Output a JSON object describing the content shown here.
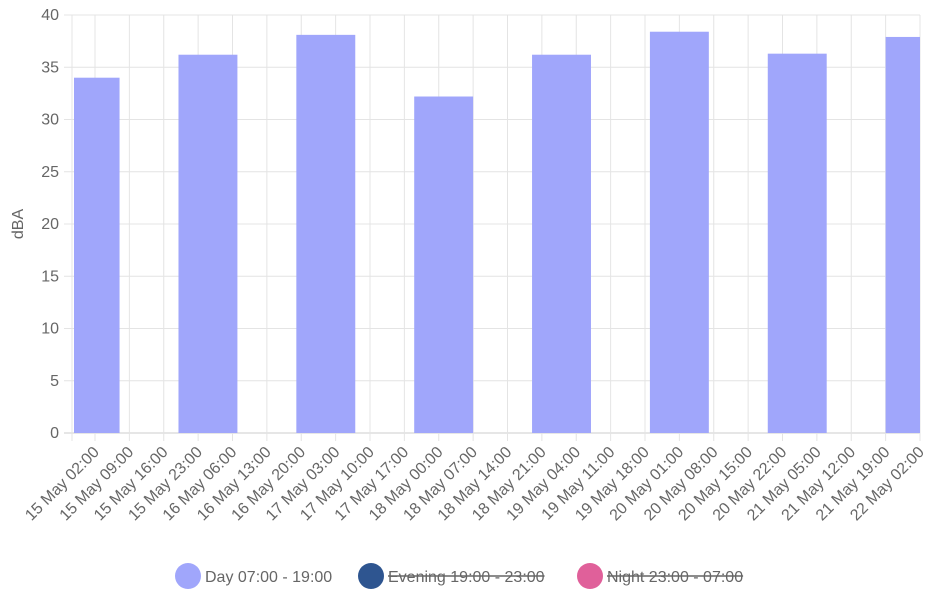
{
  "chart_data": {
    "type": "bar",
    "ylabel": "dBA",
    "ylim": [
      0,
      40
    ],
    "yticks": [
      0,
      5,
      10,
      15,
      20,
      25,
      30,
      35,
      40
    ],
    "x_ticks": [
      "15 May 02:00",
      "15 May 09:00",
      "15 May 16:00",
      "15 May 23:00",
      "16 May 06:00",
      "16 May 13:00",
      "16 May 20:00",
      "17 May 03:00",
      "17 May 10:00",
      "17 May 17:00",
      "18 May 00:00",
      "18 May 07:00",
      "18 May 14:00",
      "18 May 21:00",
      "19 May 04:00",
      "19 May 11:00",
      "19 May 18:00",
      "20 May 01:00",
      "20 May 08:00",
      "20 May 15:00",
      "20 May 22:00",
      "21 May 05:00",
      "21 May 12:00",
      "21 May 19:00",
      "22 May 02:00"
    ],
    "grid": true,
    "legend_position": "bottom",
    "series": [
      {
        "name": "Day 07:00 - 19:00",
        "color": "#a0a6fb",
        "hidden": false,
        "bars": [
          {
            "x_start": "15 May 02:00",
            "x_end": "15 May 07:00",
            "value": 34.0
          },
          {
            "x_start": "15 May 19:00",
            "x_end": "16 May 07:00",
            "value": 36.2
          },
          {
            "x_start": "16 May 19:00",
            "x_end": "17 May 07:00",
            "value": 38.1
          },
          {
            "x_start": "17 May 19:00",
            "x_end": "18 May 07:00",
            "value": 32.2
          },
          {
            "x_start": "18 May 19:00",
            "x_end": "19 May 07:00",
            "value": 36.2
          },
          {
            "x_start": "19 May 19:00",
            "x_end": "20 May 07:00",
            "value": 38.4
          },
          {
            "x_start": "20 May 19:00",
            "x_end": "21 May 07:00",
            "value": 36.3
          },
          {
            "x_start": "21 May 19:00",
            "x_end": "22 May 02:00",
            "value": 37.9
          }
        ]
      },
      {
        "name": "Evening 19:00 - 23:00",
        "color": "#2e5590",
        "hidden": true,
        "bars": []
      },
      {
        "name": "Night 23:00 - 07:00",
        "color": "#e0609a",
        "hidden": true,
        "bars": []
      }
    ]
  }
}
